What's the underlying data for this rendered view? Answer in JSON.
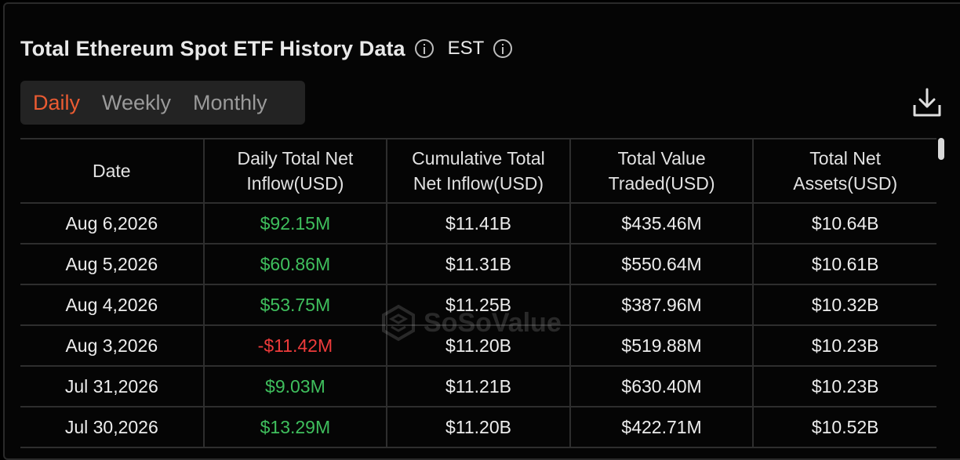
{
  "header": {
    "title": "Total Ethereum Spot ETF History Data",
    "timezone": "EST"
  },
  "tabs": [
    "Daily",
    "Weekly",
    "Monthly"
  ],
  "active_tab": "Daily",
  "table": {
    "columns": [
      "Date",
      "Daily Total Net Inflow(USD)",
      "Cumulative Total Net Inflow(USD)",
      "Total Value Traded(USD)",
      "Total Net Assets(USD)"
    ],
    "rows": [
      {
        "date": "Aug 6,2026",
        "inflow": "$92.15M",
        "cumulative": "$11.41B",
        "traded": "$435.46M",
        "assets": "$10.64B"
      },
      {
        "date": "Aug 5,2026",
        "inflow": "$60.86M",
        "cumulative": "$11.31B",
        "traded": "$550.64M",
        "assets": "$10.61B"
      },
      {
        "date": "Aug 4,2026",
        "inflow": "$53.75M",
        "cumulative": "$11.25B",
        "traded": "$387.96M",
        "assets": "$10.32B"
      },
      {
        "date": "Aug 3,2026",
        "inflow": "-$11.42M",
        "cumulative": "$11.20B",
        "traded": "$519.88M",
        "assets": "$10.23B"
      },
      {
        "date": "Jul 31,2026",
        "inflow": "$9.03M",
        "cumulative": "$11.21B",
        "traded": "$630.40M",
        "assets": "$10.23B"
      },
      {
        "date": "Jul 30,2026",
        "inflow": "$13.29M",
        "cumulative": "$11.20B",
        "traded": "$422.71M",
        "assets": "$10.52B"
      }
    ]
  },
  "colors": {
    "accent": "#ea5b32",
    "positive": "#3fbf5d",
    "negative": "#ee3b3b",
    "background": "#000000"
  },
  "watermark": "SoSoValue",
  "icons": {
    "info": "info-icon",
    "download": "download-icon"
  }
}
